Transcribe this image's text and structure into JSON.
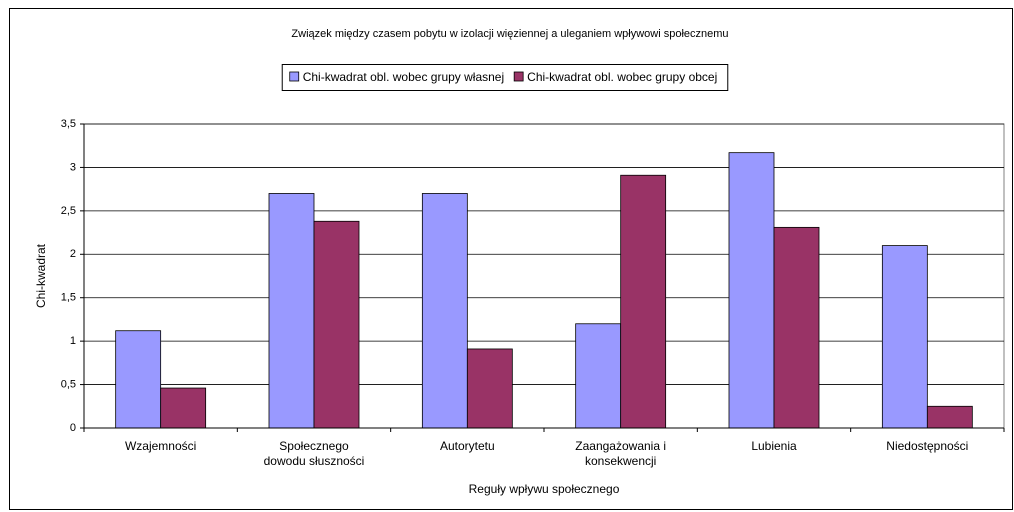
{
  "chart_data": {
    "type": "bar",
    "title": "Związek między czasem pobytu w izolacji więziennej a uleganiem wpływowi społecznemu",
    "x_label": "Reguły wpływu społecznego",
    "y_label": "Chi-kwadrat",
    "categories": [
      "Wzajemności",
      "Społecznego dowodu słuszności",
      "Autorytetu",
      "Zaangażowania i konsekwencji",
      "Lubienia",
      "Niedostępności"
    ],
    "series": [
      {
        "name": "Chi-kwadrat obl. wobec grupy własnej",
        "color": "#9999ff",
        "values": [
          1.12,
          2.7,
          2.7,
          1.2,
          3.17,
          2.1
        ]
      },
      {
        "name": "Chi-kwadrat obl. wobec grupy obcej",
        "color": "#993366",
        "values": [
          0.46,
          2.38,
          0.91,
          2.91,
          2.31,
          0.25
        ]
      }
    ],
    "ylim": [
      0,
      3.5
    ],
    "yticks": [
      0,
      {
        "value": 0.5,
        "label": "0,5"
      },
      1,
      {
        "value": 1.5,
        "label": "1,5"
      },
      2,
      {
        "value": 2.5,
        "label": "2,5"
      },
      3,
      {
        "value": 3.5,
        "label": "3,5"
      }
    ],
    "grid": true,
    "legend": "top"
  }
}
